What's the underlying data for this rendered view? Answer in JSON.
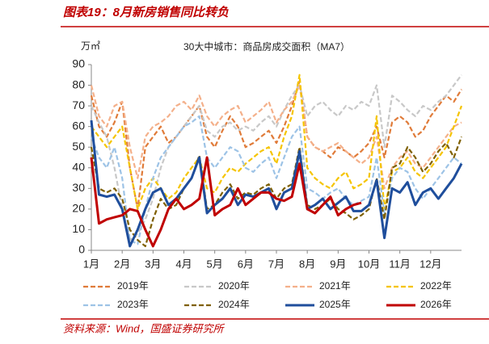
{
  "header": {
    "title": "图表19：8月新房销售同比转负"
  },
  "chart_data": {
    "type": "line",
    "title": "30大中城市：商品房成交面积（MA7）",
    "y_unit": "万㎡",
    "x": [
      0,
      0.25,
      0.5,
      0.75,
      1,
      1.25,
      1.5,
      1.75,
      2,
      2.25,
      2.5,
      2.75,
      3,
      3.25,
      3.5,
      3.75,
      4,
      4.25,
      4.5,
      4.75,
      5,
      5.25,
      5.5,
      5.75,
      6,
      6.25,
      6.5,
      6.75,
      7,
      7.25,
      7.5,
      7.75,
      8,
      8.25,
      8.5,
      8.75,
      9,
      9.25,
      9.5,
      9.75,
      10,
      10.25,
      10.5,
      10.75,
      11,
      11.25,
      11.5,
      11.75,
      12
    ],
    "xlim": [
      0,
      12
    ],
    "xticks": [
      {
        "value": 0,
        "label": "1月"
      },
      {
        "value": 1,
        "label": "2月"
      },
      {
        "value": 2,
        "label": "3月"
      },
      {
        "value": 3,
        "label": "4月"
      },
      {
        "value": 4,
        "label": "5月"
      },
      {
        "value": 5,
        "label": "6月"
      },
      {
        "value": 6,
        "label": "7月"
      },
      {
        "value": 7,
        "label": "8月"
      },
      {
        "value": 8,
        "label": "9月"
      },
      {
        "value": 9,
        "label": "10月"
      },
      {
        "value": 10,
        "label": "11月"
      },
      {
        "value": 11,
        "label": "12月"
      }
    ],
    "ylim": [
      0,
      90
    ],
    "yticks": [
      0,
      10,
      20,
      30,
      40,
      50,
      60,
      70,
      80,
      90
    ],
    "series": [
      {
        "name": "2019年",
        "color": "#e07b39",
        "style": "dashed",
        "values": [
          75,
          60,
          55,
          62,
          72,
          40,
          20,
          50,
          55,
          60,
          52,
          55,
          60,
          65,
          70,
          55,
          50,
          58,
          65,
          60,
          50,
          52,
          55,
          58,
          52,
          60,
          70,
          82,
          55,
          50,
          48,
          45,
          50,
          48,
          45,
          48,
          52,
          60,
          45,
          62,
          65,
          62,
          55,
          58,
          65,
          70,
          75,
          72,
          78
        ]
      },
      {
        "name": "2020年",
        "color": "#c8c8c8",
        "style": "dashed",
        "values": [
          70,
          62,
          55,
          40,
          20,
          5,
          8,
          15,
          25,
          40,
          50,
          55,
          60,
          65,
          70,
          58,
          55,
          60,
          62,
          58,
          60,
          58,
          62,
          65,
          60,
          68,
          75,
          80,
          65,
          70,
          72,
          68,
          65,
          70,
          68,
          72,
          70,
          80,
          50,
          75,
          72,
          68,
          65,
          70,
          68,
          72,
          75,
          80,
          85
        ]
      },
      {
        "name": "2021年",
        "color": "#f4b08a",
        "style": "dashed",
        "values": [
          80,
          65,
          60,
          70,
          72,
          50,
          35,
          55,
          60,
          62,
          65,
          70,
          72,
          68,
          75,
          65,
          60,
          65,
          68,
          70,
          62,
          65,
          68,
          72,
          62,
          68,
          72,
          80,
          55,
          50,
          48,
          50,
          52,
          48,
          45,
          42,
          45,
          55,
          30,
          40,
          45,
          48,
          42,
          40,
          45,
          50,
          55,
          60,
          62
        ]
      },
      {
        "name": "2022年",
        "color": "#f5c400",
        "style": "dashed",
        "values": [
          60,
          55,
          50,
          55,
          60,
          40,
          20,
          30,
          35,
          30,
          25,
          28,
          35,
          40,
          45,
          30,
          28,
          35,
          40,
          38,
          42,
          45,
          48,
          50,
          42,
          55,
          65,
          85,
          40,
          35,
          32,
          30,
          35,
          38,
          30,
          32,
          35,
          65,
          20,
          38,
          40,
          45,
          38,
          35,
          40,
          45,
          50,
          60,
          70
        ]
      },
      {
        "name": "2023年",
        "color": "#9dc3e6",
        "style": "dashed",
        "values": [
          55,
          45,
          40,
          50,
          35,
          5,
          3,
          20,
          35,
          45,
          50,
          55,
          60,
          62,
          65,
          45,
          40,
          45,
          50,
          48,
          40,
          38,
          42,
          45,
          35,
          45,
          55,
          60,
          30,
          28,
          25,
          28,
          30,
          25,
          22,
          24,
          26,
          45,
          18,
          35,
          40,
          38,
          30,
          25,
          30,
          35,
          40,
          45,
          42
        ]
      },
      {
        "name": "2024年",
        "color": "#7f6000",
        "style": "dashed",
        "values": [
          50,
          30,
          28,
          30,
          25,
          10,
          5,
          2,
          15,
          25,
          20,
          22,
          30,
          35,
          46,
          20,
          22,
          28,
          32,
          25,
          28,
          27,
          30,
          32,
          25,
          30,
          32,
          50,
          22,
          20,
          22,
          25,
          20,
          18,
          15,
          17,
          20,
          35,
          15,
          40,
          42,
          50,
          45,
          38,
          42,
          48,
          52,
          45,
          55
        ]
      },
      {
        "name": "2025年",
        "color": "#1f4e9c",
        "style": "solid",
        "values": [
          63,
          27,
          26,
          27,
          20,
          2,
          10,
          20,
          28,
          30,
          22,
          25,
          30,
          35,
          45,
          18,
          22,
          25,
          30,
          22,
          27,
          26,
          28,
          30,
          20,
          28,
          30,
          48,
          20,
          22,
          25,
          20,
          23,
          26,
          19,
          19,
          22,
          34,
          6,
          30,
          28,
          33,
          22,
          28,
          30,
          25,
          30,
          35,
          42
        ]
      },
      {
        "name": "2026年",
        "color": "#c00000",
        "style": "solid",
        "values": [
          45,
          13,
          15,
          16,
          17,
          20,
          19,
          10,
          2,
          10,
          20,
          25,
          20,
          22,
          25,
          45,
          17,
          20,
          22,
          30,
          22,
          25,
          28,
          28,
          25,
          24,
          26,
          42,
          20,
          18,
          22,
          26,
          17,
          20,
          22,
          23,
          null,
          null,
          null,
          null,
          null,
          null,
          null,
          null,
          null,
          null,
          null,
          null,
          null
        ]
      }
    ]
  },
  "footer": {
    "source": "资料来源：Wind，国盛证券研究所"
  }
}
